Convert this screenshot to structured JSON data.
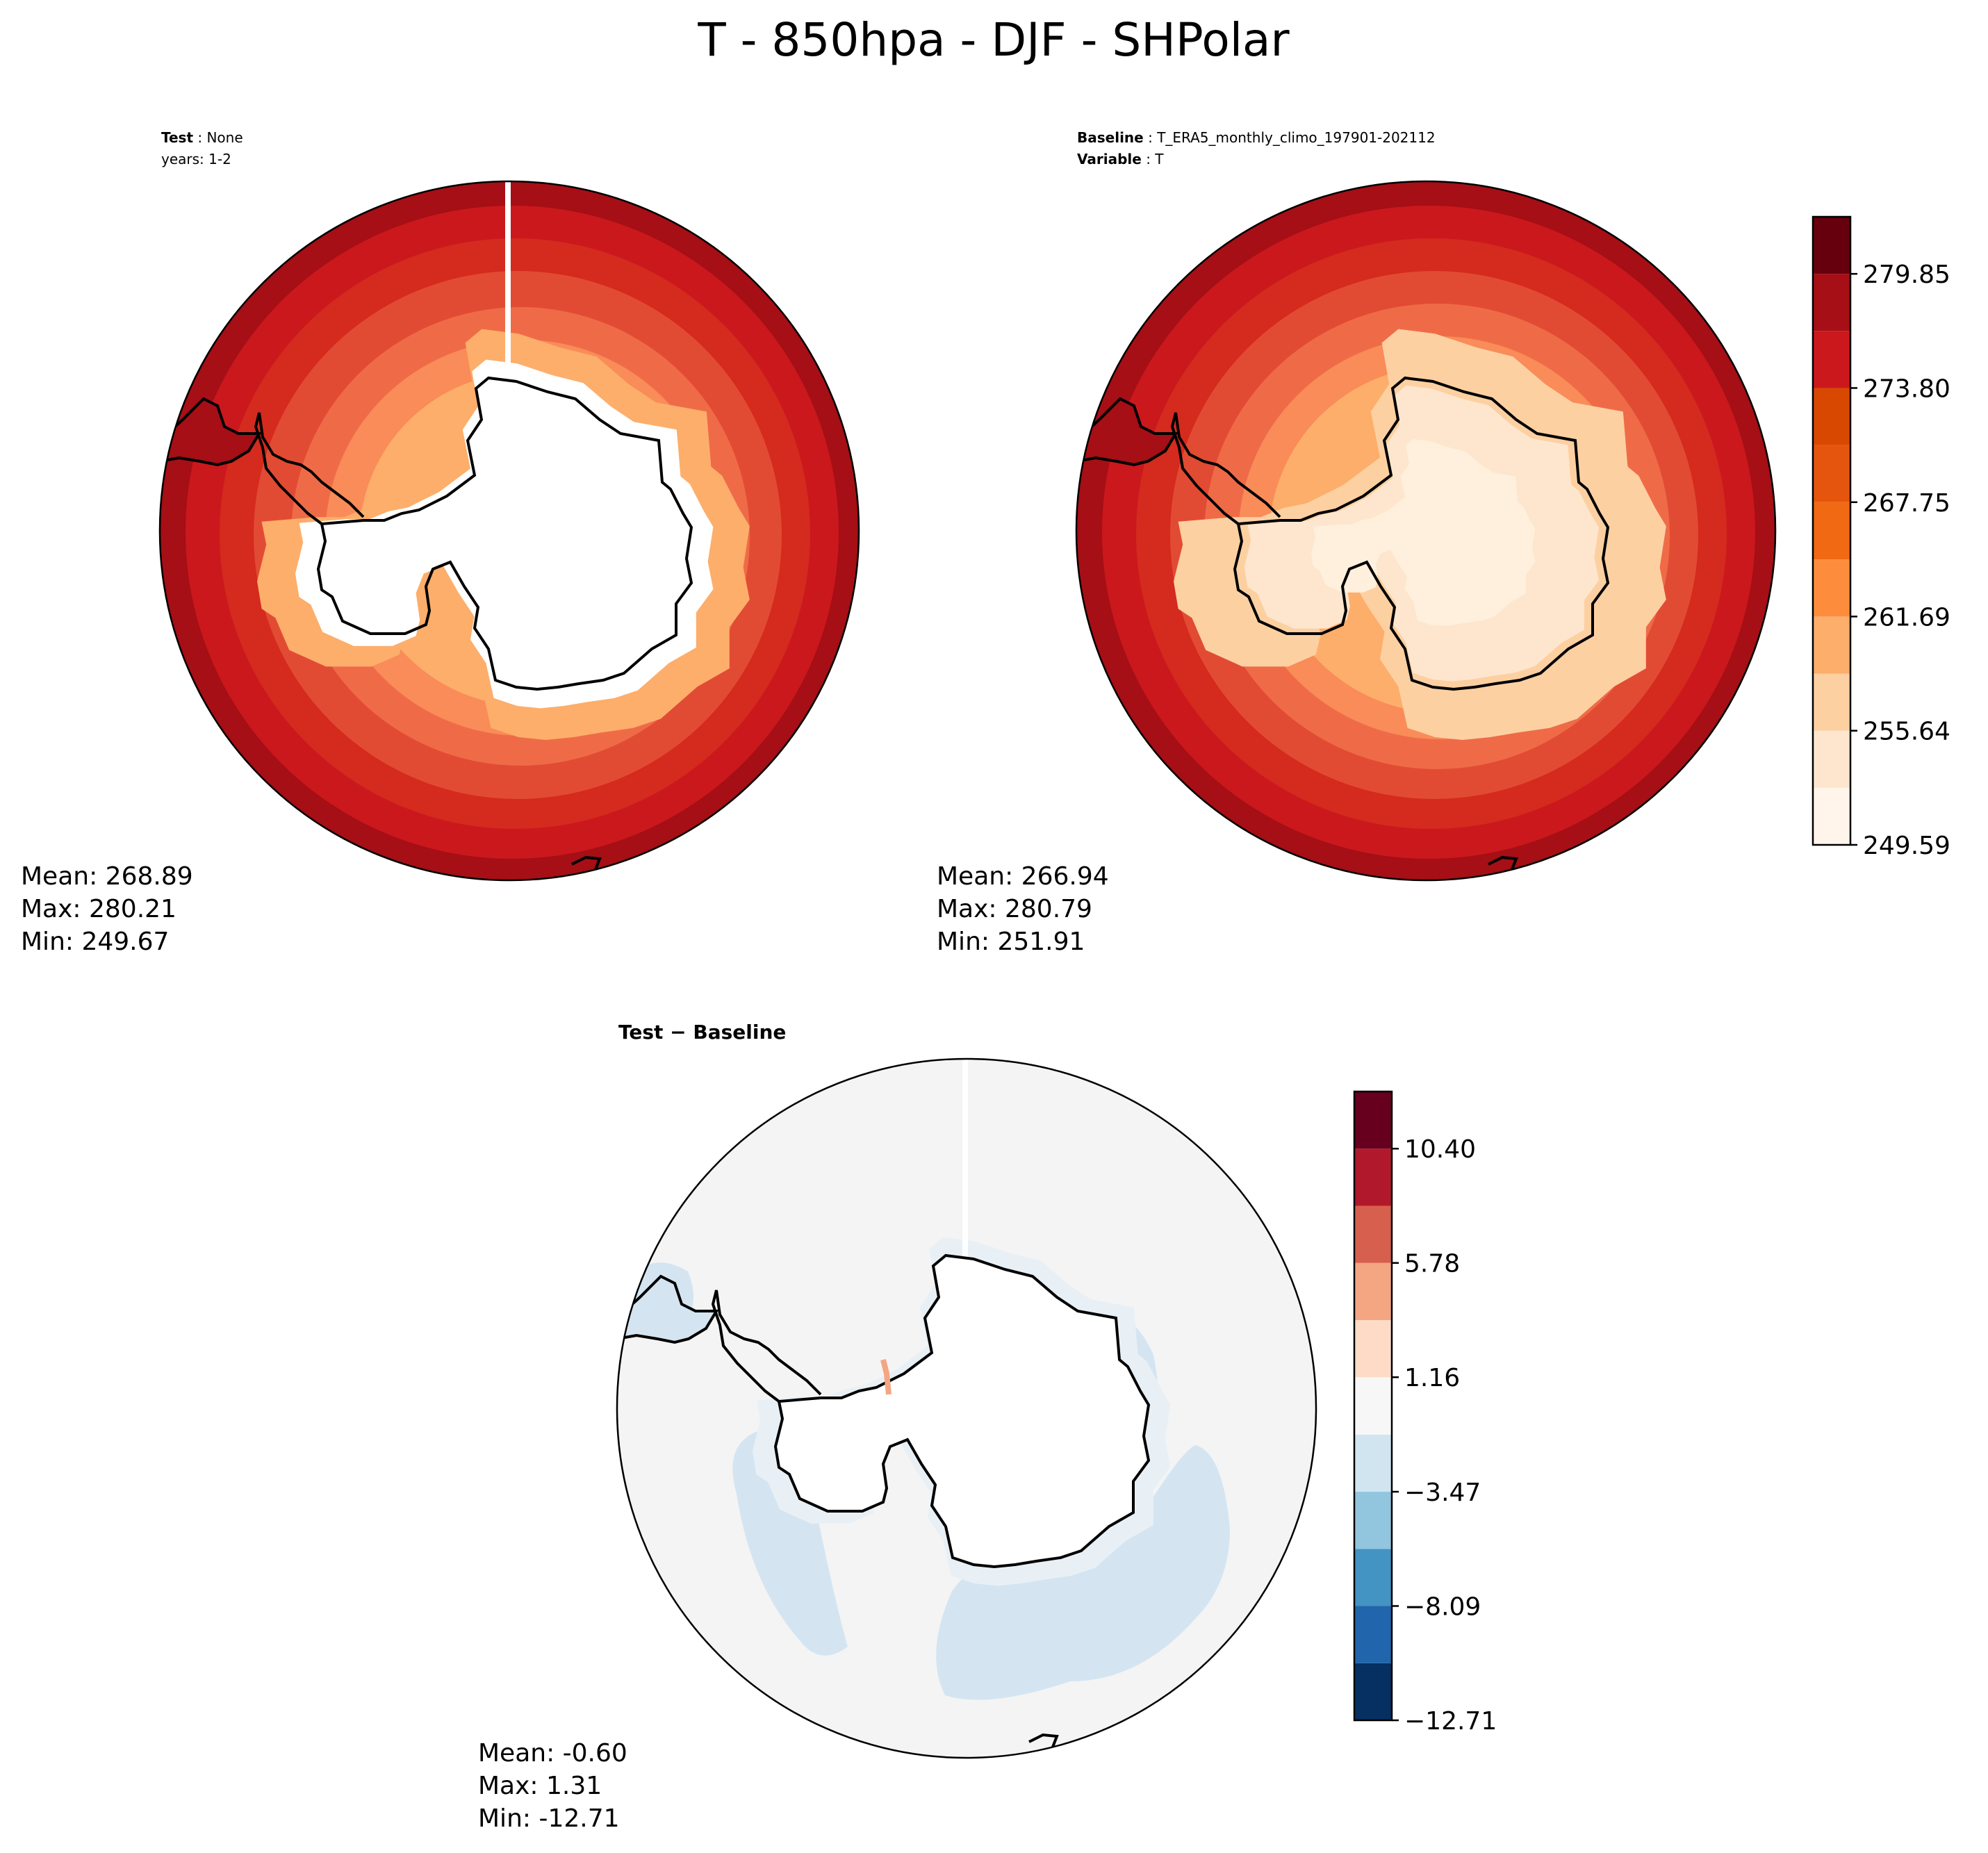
{
  "figure": {
    "title": "T - 850hpa - DJF - SHPolar"
  },
  "panels": {
    "test": {
      "label_bold": "Test",
      "label_value": "None",
      "label_line2": "years: 1-2",
      "stats": {
        "mean": "Mean: 268.89",
        "max": "Max: 280.21",
        "min": "Min: 249.67"
      }
    },
    "baseline": {
      "label_bold": "Baseline",
      "label_value": "T_ERA5_monthly_climo_197901-202112",
      "label2_bold": "Variable",
      "label2_value": "T",
      "stats": {
        "mean": "Mean: 266.94",
        "max": "Max: 280.79",
        "min": "Min: 251.91"
      }
    },
    "diff": {
      "label_bold": "Test − Baseline",
      "stats": {
        "mean": "Mean: -0.60",
        "max": "Max:  1.31",
        "min": "Min: -12.71"
      }
    }
  },
  "chart_data": [
    {
      "type": "heatmap",
      "name": "Test",
      "projection": "south-polar-stereographic",
      "colormap": "Reds",
      "value_range": [
        249.67,
        280.21
      ],
      "mean": 268.89
    },
    {
      "type": "heatmap",
      "name": "Baseline",
      "projection": "south-polar-stereographic",
      "colormap": "Reds",
      "value_range": [
        251.91,
        280.79
      ],
      "mean": 266.94,
      "colorbar": {
        "levels": [
          249.59,
          252.615,
          255.64,
          258.665,
          261.69,
          264.715,
          267.75,
          270.775,
          273.8,
          276.825,
          279.85,
          282.875
        ],
        "tick_labels": [
          "279.85",
          "273.80",
          "267.75",
          "261.69",
          "255.64",
          "249.59"
        ],
        "tick_values": [
          279.85,
          273.8,
          267.75,
          261.69,
          255.64,
          249.59
        ],
        "colors": [
          "#fff5eb",
          "#fee6ce",
          "#fdd0a2",
          "#fdae6b",
          "#fd8d3c",
          "#f16913",
          "#e6550d",
          "#d94801",
          "#cb181d",
          "#a50f15",
          "#67000d"
        ]
      }
    },
    {
      "type": "heatmap",
      "name": "Test − Baseline",
      "projection": "south-polar-stereographic",
      "colormap": "RdBu_r",
      "value_range": [
        -12.71,
        1.31
      ],
      "mean": -0.6,
      "colorbar": {
        "levels": [
          -12.71,
          -10.4,
          -8.09,
          -5.78,
          -3.47,
          -1.16,
          1.16,
          3.47,
          5.78,
          8.09,
          10.4,
          12.71
        ],
        "tick_labels": [
          "10.40",
          "5.78",
          "1.16",
          "−3.47",
          "−8.09",
          "−12.71"
        ],
        "tick_values": [
          10.4,
          5.78,
          1.16,
          -3.47,
          -8.09,
          -12.71
        ],
        "colors": [
          "#053061",
          "#2166ac",
          "#4393c3",
          "#92c5de",
          "#d1e5f0",
          "#f7f7f7",
          "#fddbc7",
          "#f4a582",
          "#d6604d",
          "#b2182b",
          "#67001f"
        ]
      }
    }
  ],
  "palette": {
    "land_fill": "#ffffff",
    "coast": "#000000",
    "diff_background": "#f4f4f4"
  }
}
